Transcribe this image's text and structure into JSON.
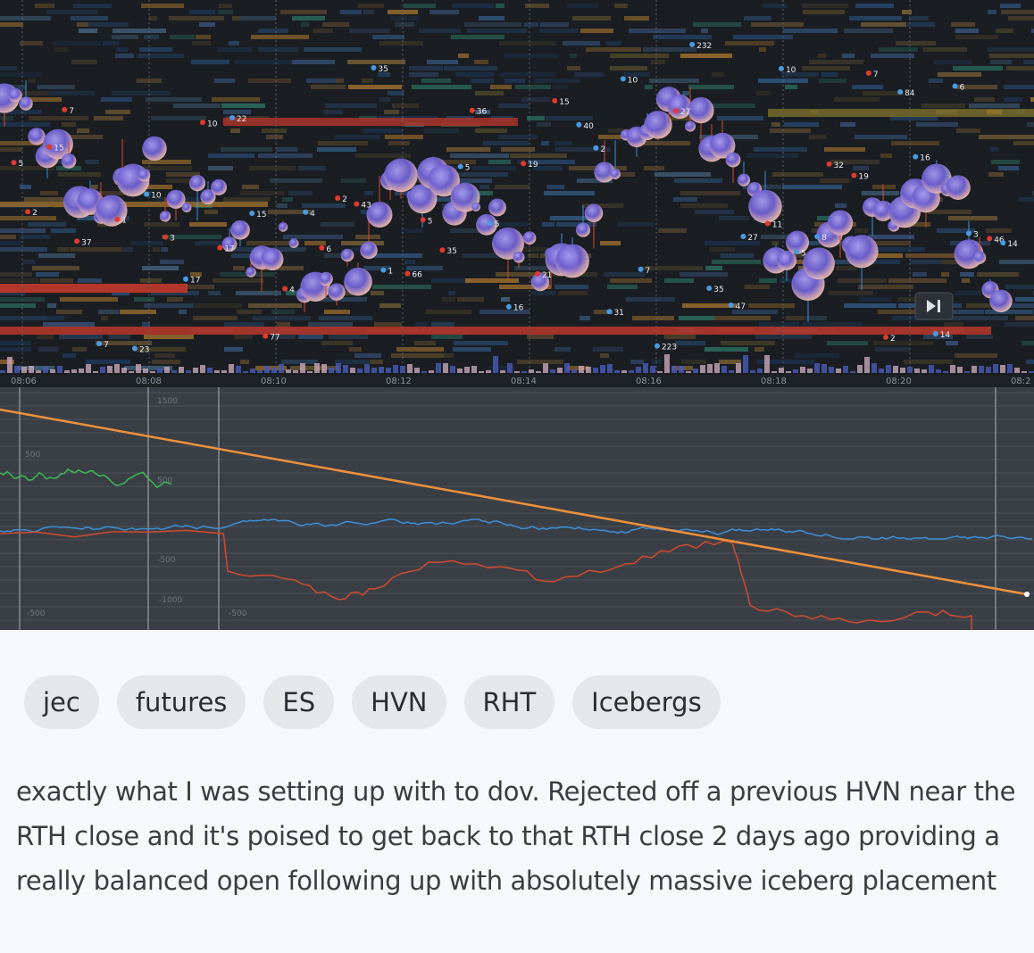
{
  "chart": {
    "time_labels": [
      "08:06",
      "08:08",
      "08:10",
      "08:12",
      "08:14",
      "08:16",
      "08:18",
      "08:20",
      "08:2"
    ],
    "bubble_labels": [
      "5",
      "2",
      "15",
      "7",
      "37",
      "7",
      "1",
      "23",
      "10",
      "3",
      "17",
      "10",
      "17",
      "22",
      "15",
      "77",
      "4",
      "4",
      "6",
      "2",
      "43",
      "35",
      "1",
      "66",
      "5",
      "35",
      "5",
      "36",
      "5",
      "16",
      "19",
      "21",
      "15",
      "40",
      "2",
      "31",
      "10",
      "7",
      "223",
      "27",
      "232",
      "35",
      "47",
      "27",
      "11",
      "10",
      "5",
      "8",
      "32",
      "19",
      "7",
      "2",
      "84",
      "16",
      "14",
      "6",
      "3",
      "46",
      "14"
    ],
    "indicator_labels": [
      "1500",
      "500",
      "500",
      "-500",
      "-1000",
      "-500",
      "-500"
    ],
    "play_icon": "skip-forward-icon",
    "colors": {
      "background": "#1e2226",
      "trend_line": "#f0913a",
      "delta_line_blue": "#3d8fd6",
      "delta_line_red": "#d24a2e",
      "delta_line_green": "#3cba54",
      "bubble": "#7b6fd8"
    }
  },
  "tags": [
    "jec",
    "futures",
    "ES",
    "HVN",
    "RHT",
    "Icebergs"
  ],
  "post_text": "exactly what I was setting up with to dov. Rejected off a previous HVN near the RTH close and it's poised to get back to that RTH close 2 days ago providing a really balanced open following up with absolutely massive iceberg placement"
}
